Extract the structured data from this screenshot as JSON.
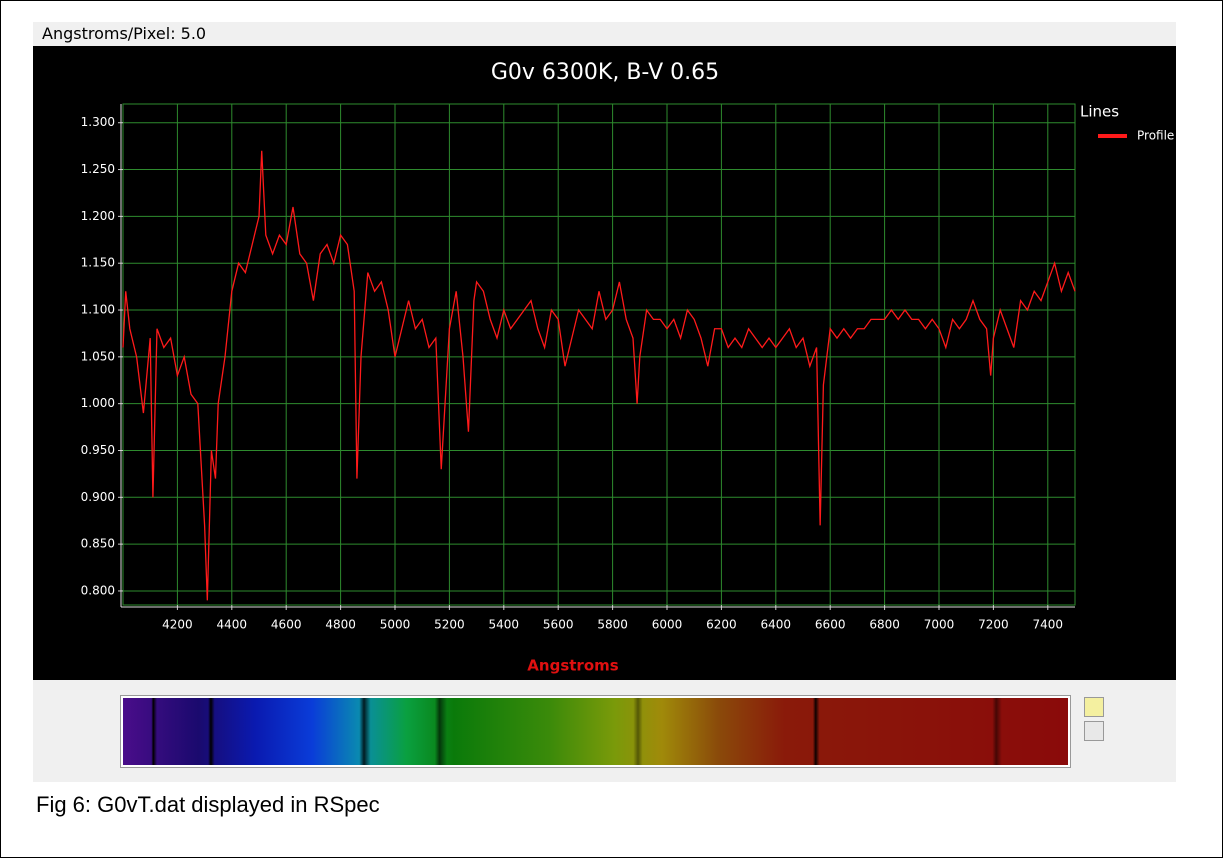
{
  "header_label": "Angstroms/Pixel: 5.0",
  "caption": "Fig 6: G0vT.dat displayed in RSpec",
  "chart_data": {
    "type": "line",
    "title": "G0v 6300K, B-V 0.65",
    "xlabel": "Angstroms",
    "legend_title": "Lines",
    "legend": "top-right",
    "grid": true,
    "xlim": [
      4000,
      7500
    ],
    "ylim": [
      0.785,
      1.32
    ],
    "xticks": [
      4200,
      4400,
      4600,
      4800,
      5000,
      5200,
      5400,
      5600,
      5800,
      6000,
      6200,
      6400,
      6600,
      6800,
      7000,
      7200,
      7400
    ],
    "yticks": [
      {
        "value": 0.8,
        "label": "0.800"
      },
      {
        "value": 0.85,
        "label": "0.850"
      },
      {
        "value": 0.9,
        "label": "0.900"
      },
      {
        "value": 0.95,
        "label": "0.950"
      },
      {
        "value": 1.0,
        "label": "1.000"
      },
      {
        "value": 1.05,
        "label": "1.050"
      },
      {
        "value": 1.1,
        "label": "1.100"
      },
      {
        "value": 1.15,
        "label": "1.150"
      },
      {
        "value": 1.2,
        "label": "1.200"
      },
      {
        "value": 1.25,
        "label": "1.250"
      },
      {
        "value": 1.3,
        "label": "1.300"
      }
    ],
    "x": [
      4000,
      4010,
      4025,
      4050,
      4075,
      4100,
      4110,
      4125,
      4150,
      4175,
      4200,
      4225,
      4250,
      4275,
      4300,
      4310,
      4325,
      4340,
      4350,
      4375,
      4400,
      4425,
      4450,
      4475,
      4500,
      4510,
      4525,
      4550,
      4575,
      4600,
      4625,
      4650,
      4675,
      4700,
      4725,
      4750,
      4775,
      4800,
      4825,
      4850,
      4860,
      4875,
      4900,
      4925,
      4950,
      4975,
      5000,
      5025,
      5050,
      5075,
      5100,
      5125,
      5150,
      5170,
      5190,
      5200,
      5225,
      5250,
      5270,
      5290,
      5300,
      5325,
      5350,
      5375,
      5400,
      5425,
      5450,
      5475,
      5500,
      5525,
      5550,
      5575,
      5600,
      5625,
      5650,
      5675,
      5700,
      5725,
      5750,
      5775,
      5800,
      5825,
      5850,
      5875,
      5890,
      5900,
      5925,
      5950,
      5975,
      6000,
      6025,
      6050,
      6075,
      6100,
      6125,
      6150,
      6175,
      6200,
      6225,
      6250,
      6275,
      6300,
      6325,
      6350,
      6375,
      6400,
      6425,
      6450,
      6475,
      6500,
      6525,
      6550,
      6563,
      6575,
      6600,
      6625,
      6650,
      6675,
      6700,
      6725,
      6750,
      6775,
      6800,
      6825,
      6850,
      6875,
      6900,
      6925,
      6950,
      6975,
      7000,
      7025,
      7050,
      7075,
      7100,
      7125,
      7150,
      7175,
      7190,
      7200,
      7225,
      7250,
      7275,
      7300,
      7325,
      7350,
      7375,
      7400,
      7425,
      7450,
      7475,
      7500
    ],
    "series": [
      {
        "name": "Profile",
        "color": "#ff1a1a",
        "values": [
          1.06,
          1.12,
          1.08,
          1.05,
          0.99,
          1.07,
          0.9,
          1.08,
          1.06,
          1.07,
          1.03,
          1.05,
          1.01,
          1.0,
          0.87,
          0.79,
          0.95,
          0.92,
          1.0,
          1.05,
          1.12,
          1.15,
          1.14,
          1.17,
          1.2,
          1.27,
          1.18,
          1.16,
          1.18,
          1.17,
          1.21,
          1.16,
          1.15,
          1.11,
          1.16,
          1.17,
          1.15,
          1.18,
          1.17,
          1.12,
          0.92,
          1.05,
          1.14,
          1.12,
          1.13,
          1.1,
          1.05,
          1.08,
          1.11,
          1.08,
          1.09,
          1.06,
          1.07,
          0.93,
          1.03,
          1.08,
          1.12,
          1.05,
          0.97,
          1.11,
          1.13,
          1.12,
          1.09,
          1.07,
          1.1,
          1.08,
          1.09,
          1.1,
          1.11,
          1.08,
          1.06,
          1.1,
          1.09,
          1.04,
          1.07,
          1.1,
          1.09,
          1.08,
          1.12,
          1.09,
          1.1,
          1.13,
          1.09,
          1.07,
          1.0,
          1.05,
          1.1,
          1.09,
          1.09,
          1.08,
          1.09,
          1.07,
          1.1,
          1.09,
          1.07,
          1.04,
          1.08,
          1.08,
          1.06,
          1.07,
          1.06,
          1.08,
          1.07,
          1.06,
          1.07,
          1.06,
          1.07,
          1.08,
          1.06,
          1.07,
          1.04,
          1.06,
          0.87,
          1.02,
          1.08,
          1.07,
          1.08,
          1.07,
          1.08,
          1.08,
          1.09,
          1.09,
          1.09,
          1.1,
          1.09,
          1.1,
          1.09,
          1.09,
          1.08,
          1.09,
          1.08,
          1.06,
          1.09,
          1.08,
          1.09,
          1.11,
          1.09,
          1.08,
          1.03,
          1.07,
          1.1,
          1.08,
          1.06,
          1.11,
          1.1,
          1.12,
          1.11,
          1.13,
          1.15,
          1.12,
          1.14,
          1.12
        ]
      }
    ]
  }
}
